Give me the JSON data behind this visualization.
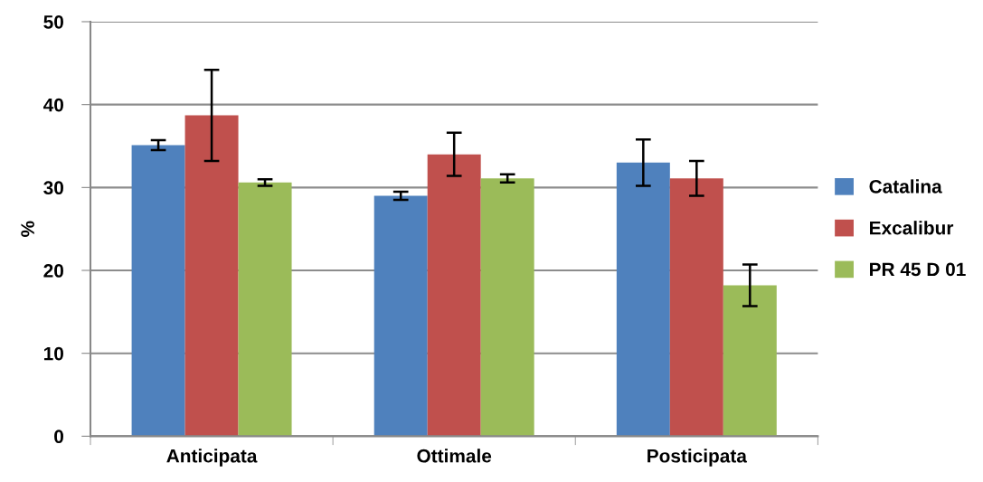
{
  "chart_data": {
    "type": "bar",
    "ylabel": "%",
    "categories": [
      "Anticipata",
      "Ottimale",
      "Posticipata"
    ],
    "series": [
      {
        "name": "Catalina",
        "color": "#4f81bd",
        "values": [
          35.1,
          29.0,
          33.0
        ],
        "errors": [
          0.6,
          0.5,
          2.8
        ]
      },
      {
        "name": "Excalibur",
        "color": "#c0504d",
        "values": [
          38.7,
          34.0,
          31.1
        ],
        "errors": [
          5.5,
          2.6,
          2.1
        ]
      },
      {
        "name": "PR 45 D 01",
        "color": "#9bbb59",
        "values": [
          30.6,
          31.1,
          18.2
        ],
        "errors": [
          0.4,
          0.5,
          2.5
        ]
      }
    ],
    "ylim": [
      0,
      50
    ],
    "yticks": [
      0,
      10,
      20,
      30,
      40,
      50
    ],
    "grid": "y",
    "legend": "right"
  }
}
